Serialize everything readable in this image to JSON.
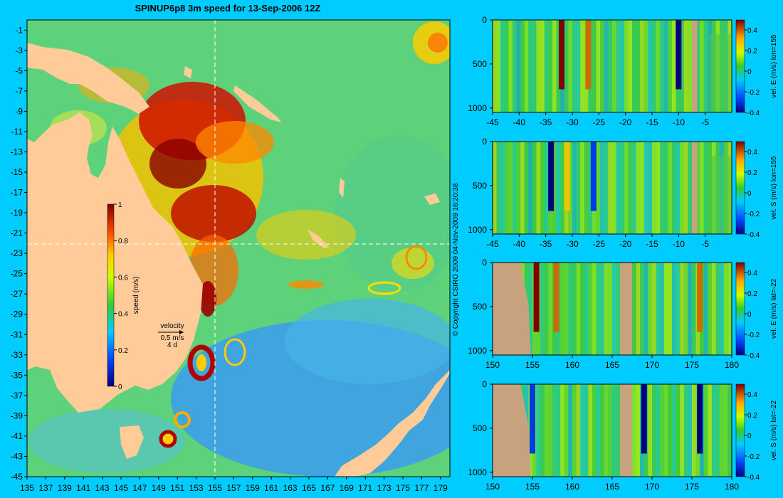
{
  "title": "SPINUP6p8 3m speed for 13-Sep-2006 12Z",
  "copyright": "© Copyright CSIRO 2009   04-Nov-2009 16:20:38",
  "colors": {
    "background": "#00ccff",
    "land": "#ffcc99",
    "section_land": "#c8a27e"
  },
  "chart_data": [
    {
      "type": "heatmap",
      "title": "SPINUP6p8 3m speed for 13-Sep-2006 12Z",
      "x_ticks": [
        "135",
        "137",
        "139",
        "141",
        "143",
        "145",
        "147",
        "149",
        "151",
        "153",
        "155",
        "157",
        "159",
        "161",
        "163",
        "165",
        "167",
        "169",
        "171",
        "173",
        "175",
        "177",
        "179"
      ],
      "y_ticks": [
        "-1",
        "-3",
        "-5",
        "-7",
        "-9",
        "-11",
        "-13",
        "-15",
        "-17",
        "-19",
        "-21",
        "-23",
        "-25",
        "-27",
        "-29",
        "-31",
        "-33",
        "-35",
        "-37",
        "-39",
        "-41",
        "-43",
        "-45"
      ],
      "xlim": [
        135,
        180
      ],
      "ylim": [
        -45,
        0
      ],
      "colorbar": {
        "label": "speed (m/s)",
        "ticks": [
          "1",
          "0.8",
          "0.6",
          "0.4",
          "0.2",
          "0"
        ],
        "range": [
          0,
          1
        ]
      },
      "velocity_legend": {
        "title": "velocity",
        "value": "0.5 m/s",
        "duration": "4 d"
      },
      "section_lines": {
        "lon": 155,
        "lat": -22
      },
      "features": [
        {
          "name": "warm-core eddy",
          "lon": 153,
          "lat": -34.5
        },
        {
          "name": "eddy",
          "lon": 151,
          "lat": -39
        },
        {
          "name": "eddy",
          "lon": 150,
          "lat": -41
        }
      ]
    },
    {
      "type": "heatmap",
      "ylabel": "vel. E (m/s) lon=155",
      "x_ticks": [
        "-45",
        "-40",
        "-35",
        "-30",
        "-25",
        "-20",
        "-15",
        "-10",
        "-5"
      ],
      "y_ticks": [
        "0",
        "500",
        "1000"
      ],
      "xlim": [
        -45,
        0
      ],
      "ylim": [
        1050,
        0
      ],
      "colorbar": {
        "ticks": [
          "0.4",
          "0.2",
          "0",
          "-0.2",
          "-0.4"
        ],
        "range": [
          -0.4,
          0.4
        ]
      },
      "features": [
        {
          "x": -32,
          "value": 0.4
        },
        {
          "x": -27,
          "value": 0.3
        },
        {
          "x": -10,
          "value": -0.4
        }
      ]
    },
    {
      "type": "heatmap",
      "ylabel": "vel. S (m/s) lon=155",
      "x_ticks": [
        "-45",
        "-40",
        "-35",
        "-30",
        "-25",
        "-20",
        "-15",
        "-10",
        "-5"
      ],
      "y_ticks": [
        "0",
        "500",
        "1000"
      ],
      "xlim": [
        -45,
        0
      ],
      "ylim": [
        1050,
        0
      ],
      "colorbar": {
        "ticks": [
          "0.4",
          "0.2",
          "0",
          "-0.2",
          "-0.4"
        ],
        "range": [
          -0.4,
          0.4
        ]
      },
      "features": [
        {
          "x": -34,
          "value": -0.4
        },
        {
          "x": -26,
          "value": -0.3
        },
        {
          "x": -31,
          "value": 0.2
        }
      ]
    },
    {
      "type": "heatmap",
      "ylabel": "vel. E (m/s) lat=-22",
      "x_ticks": [
        "150",
        "155",
        "160",
        "165",
        "170",
        "175",
        "180"
      ],
      "y_ticks": [
        "0",
        "500",
        "1000"
      ],
      "xlim": [
        150,
        180
      ],
      "ylim": [
        1050,
        0
      ],
      "colorbar": {
        "ticks": [
          "0.4",
          "0.2",
          "0",
          "-0.2",
          "-0.4"
        ],
        "range": [
          -0.4,
          0.4
        ]
      },
      "features": [
        {
          "x": 155.5,
          "value": 0.4
        },
        {
          "x": 158,
          "value": 0.3
        },
        {
          "x": 176,
          "value": 0.3
        }
      ]
    },
    {
      "type": "heatmap",
      "ylabel": "vel. S (m/s) lat=-22",
      "x_ticks": [
        "150",
        "155",
        "160",
        "165",
        "170",
        "175",
        "180"
      ],
      "y_ticks": [
        "0",
        "500",
        "1000"
      ],
      "xlim": [
        150,
        180
      ],
      "ylim": [
        1050,
        0
      ],
      "colorbar": {
        "ticks": [
          "0.4",
          "0.2",
          "0",
          "-0.2",
          "-0.4"
        ],
        "range": [
          -0.4,
          0.4
        ]
      },
      "features": [
        {
          "x": 155,
          "value": -0.3
        },
        {
          "x": 169,
          "value": -0.4
        },
        {
          "x": 176,
          "value": -0.4
        }
      ]
    }
  ]
}
